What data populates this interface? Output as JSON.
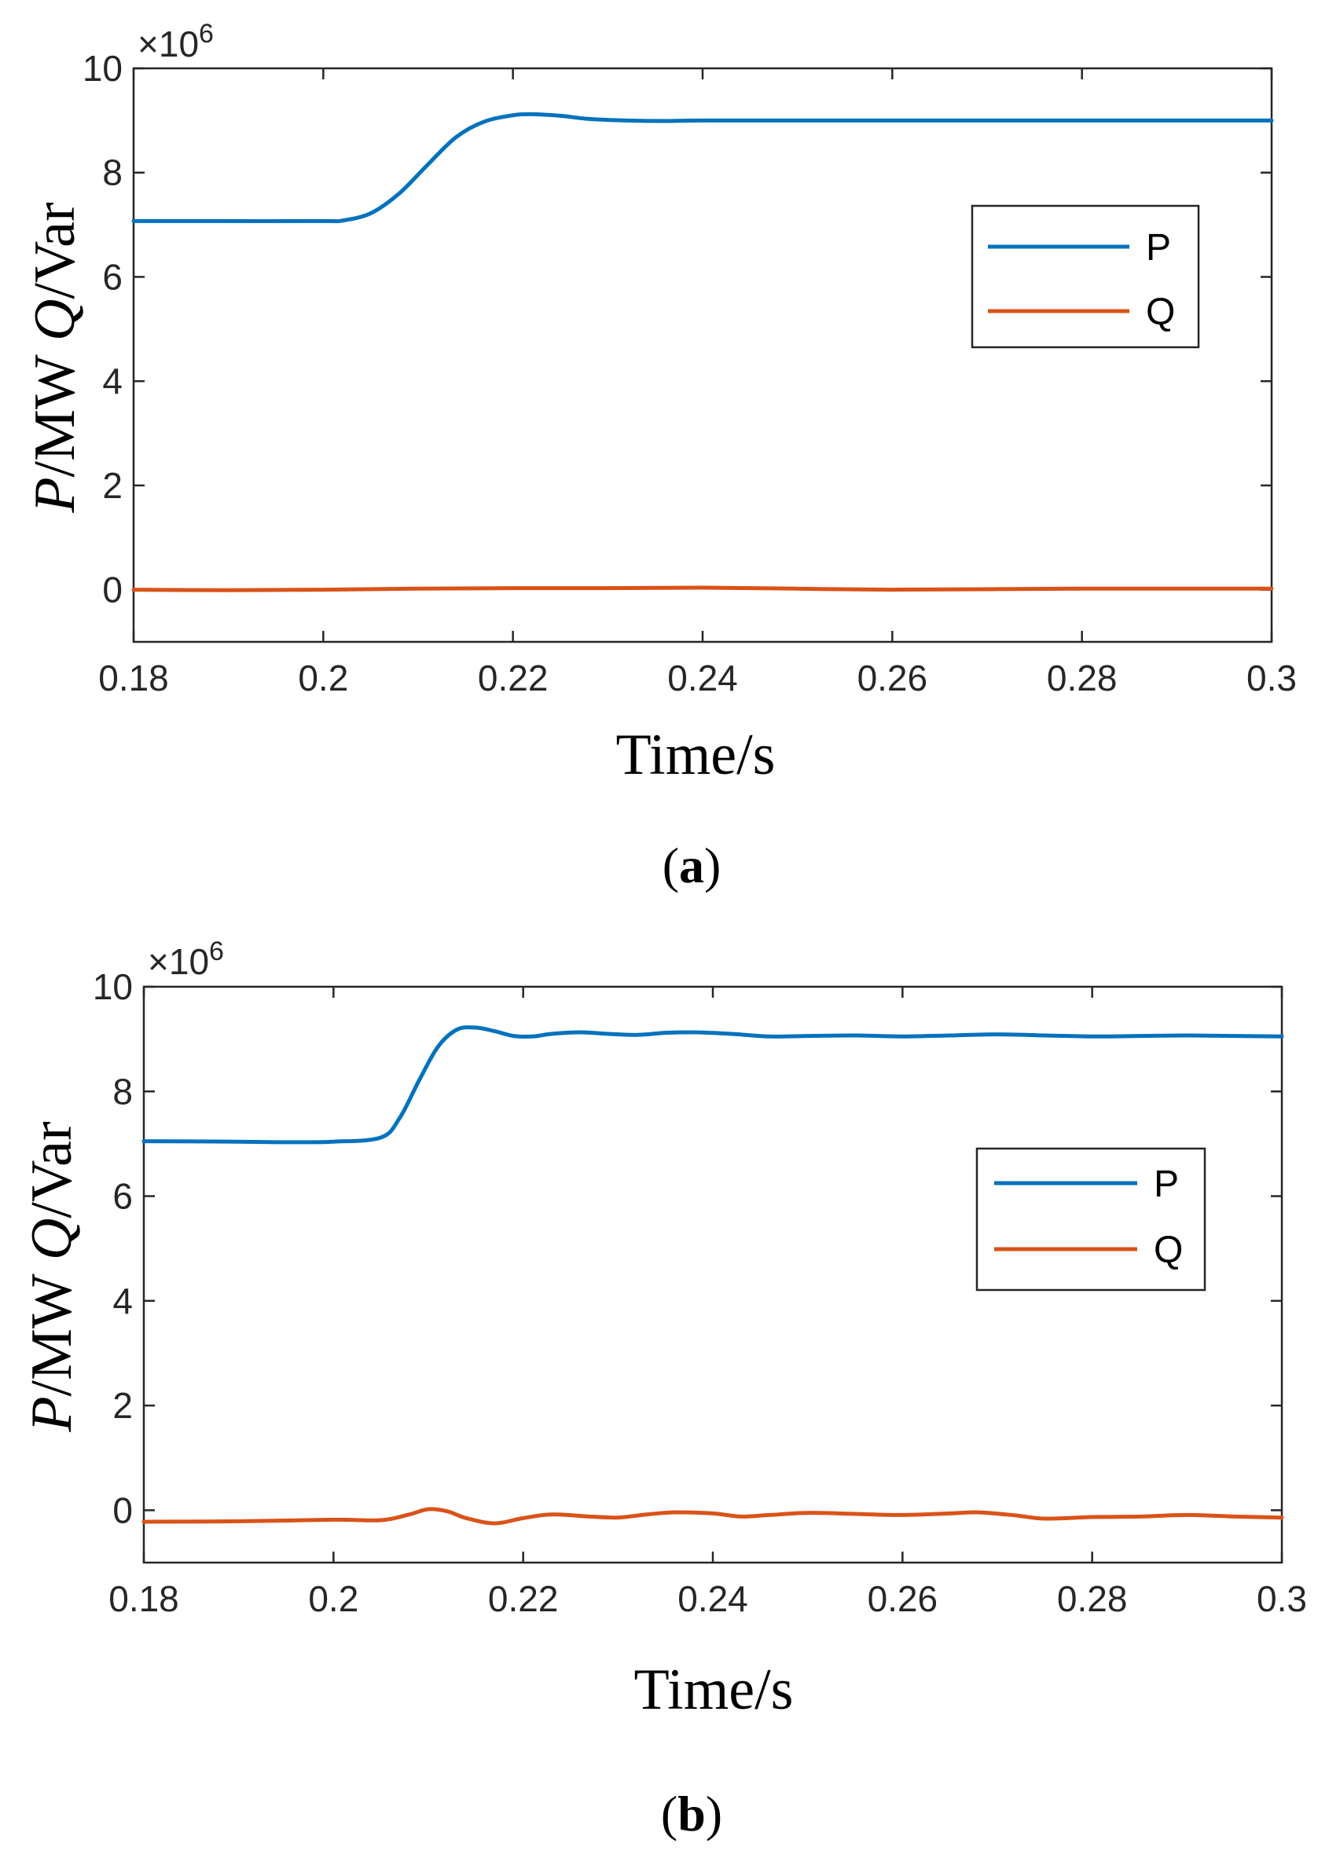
{
  "chart_data": [
    {
      "id": "a",
      "type": "line",
      "caption_letter": "a",
      "xlabel": "Time/s",
      "ylabel": {
        "P": "P",
        "mw": "/MW ",
        "Q": "Q",
        "var": "/Var"
      },
      "exponent_label": "×10",
      "exponent_power": "6",
      "xlim": [
        0.18,
        0.3
      ],
      "ylim": [
        -1,
        10
      ],
      "xticks": [
        0.18,
        0.2,
        0.22,
        0.24,
        0.26,
        0.28,
        0.3
      ],
      "xtick_labels": [
        "0.18",
        "0.2",
        "0.22",
        "0.24",
        "0.26",
        "0.28",
        "0.3"
      ],
      "yticks": [
        0,
        2,
        4,
        6,
        8,
        10
      ],
      "ytick_labels": [
        "0",
        "2",
        "4",
        "6",
        "8",
        "10"
      ],
      "legend_position": "right",
      "series": [
        {
          "name": "P",
          "color": "#0072bd",
          "x": [
            0.18,
            0.19,
            0.2,
            0.202,
            0.205,
            0.208,
            0.211,
            0.214,
            0.217,
            0.22,
            0.222,
            0.225,
            0.228,
            0.232,
            0.236,
            0.24,
            0.25,
            0.26,
            0.27,
            0.28,
            0.29,
            0.3
          ],
          "y": [
            7.07,
            7.07,
            7.07,
            7.08,
            7.22,
            7.6,
            8.15,
            8.68,
            8.98,
            9.1,
            9.12,
            9.09,
            9.03,
            9.0,
            8.99,
            9.0,
            9.0,
            9.0,
            9.0,
            9.0,
            9.0,
            9.0
          ]
        },
        {
          "name": "Q",
          "color": "#d95319",
          "x": [
            0.18,
            0.19,
            0.2,
            0.21,
            0.22,
            0.23,
            0.24,
            0.25,
            0.26,
            0.27,
            0.28,
            0.29,
            0.3
          ],
          "y": [
            0.0,
            -0.01,
            0.0,
            0.02,
            0.03,
            0.03,
            0.04,
            0.02,
            0.0,
            0.01,
            0.02,
            0.02,
            0.02
          ]
        }
      ]
    },
    {
      "id": "b",
      "type": "line",
      "caption_letter": "b",
      "xlabel": "Time/s",
      "ylabel": {
        "P": "P",
        "mw": "/MW ",
        "Q": "Q",
        "var": "/Var"
      },
      "exponent_label": "×10",
      "exponent_power": "6",
      "xlim": [
        0.18,
        0.3
      ],
      "ylim": [
        -1,
        10
      ],
      "xticks": [
        0.18,
        0.2,
        0.22,
        0.24,
        0.26,
        0.28,
        0.3
      ],
      "xtick_labels": [
        "0.18",
        "0.2",
        "0.22",
        "0.24",
        "0.26",
        "0.28",
        "0.3"
      ],
      "yticks": [
        0,
        2,
        4,
        6,
        8,
        10
      ],
      "ytick_labels": [
        "0",
        "2",
        "4",
        "6",
        "8",
        "10"
      ],
      "legend_position": "right",
      "series": [
        {
          "name": "P",
          "color": "#0072bd",
          "x": [
            0.18,
            0.19,
            0.195,
            0.2,
            0.205,
            0.207,
            0.209,
            0.211,
            0.213,
            0.215,
            0.217,
            0.219,
            0.221,
            0.223,
            0.226,
            0.229,
            0.232,
            0.235,
            0.238,
            0.242,
            0.246,
            0.25,
            0.255,
            0.26,
            0.265,
            0.27,
            0.275,
            0.28,
            0.285,
            0.29,
            0.295,
            0.3
          ],
          "y": [
            7.05,
            7.04,
            7.03,
            7.04,
            7.12,
            7.5,
            8.2,
            8.85,
            9.18,
            9.22,
            9.15,
            9.06,
            9.05,
            9.1,
            9.13,
            9.1,
            9.08,
            9.12,
            9.13,
            9.1,
            9.05,
            9.06,
            9.07,
            9.05,
            9.07,
            9.09,
            9.07,
            9.05,
            9.06,
            9.07,
            9.06,
            9.05
          ]
        },
        {
          "name": "Q",
          "color": "#d95319",
          "x": [
            0.18,
            0.19,
            0.2,
            0.205,
            0.208,
            0.21,
            0.212,
            0.214,
            0.217,
            0.22,
            0.223,
            0.227,
            0.23,
            0.233,
            0.236,
            0.24,
            0.243,
            0.246,
            0.25,
            0.255,
            0.26,
            0.265,
            0.268,
            0.272,
            0.275,
            0.28,
            0.285,
            0.29,
            0.295,
            0.3
          ],
          "y": [
            -0.22,
            -0.21,
            -0.18,
            -0.19,
            -0.08,
            0.02,
            -0.02,
            -0.15,
            -0.25,
            -0.15,
            -0.08,
            -0.12,
            -0.14,
            -0.08,
            -0.04,
            -0.06,
            -0.12,
            -0.09,
            -0.05,
            -0.07,
            -0.09,
            -0.06,
            -0.04,
            -0.1,
            -0.16,
            -0.13,
            -0.12,
            -0.09,
            -0.12,
            -0.14
          ]
        }
      ]
    }
  ]
}
